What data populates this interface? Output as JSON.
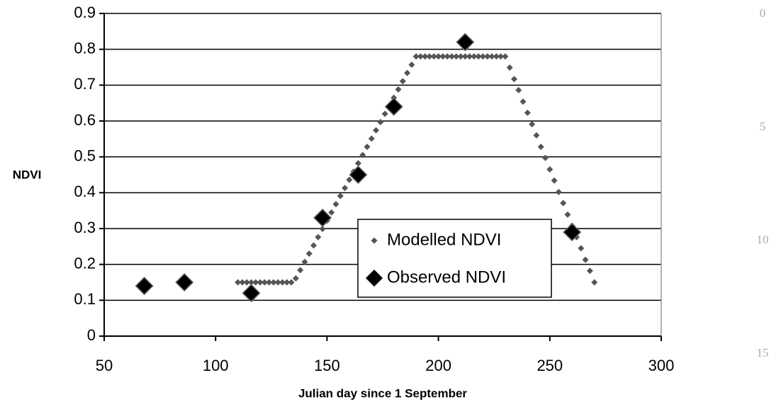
{
  "chart_data": {
    "type": "scatter",
    "xlabel": "Julian day since 1 September",
    "ylabel": "NDVI",
    "xlim": [
      50,
      300
    ],
    "xticks": [
      50,
      100,
      150,
      200,
      250,
      300
    ],
    "ylim": [
      0,
      0.9
    ],
    "yticks": [
      0,
      0.1,
      0.2,
      0.3,
      0.4,
      0.5,
      0.6,
      0.7,
      0.8,
      0.9
    ],
    "grid": true,
    "legend": "center-right",
    "series": [
      {
        "name": "Modelled NDVI",
        "color": "#555555",
        "marker": "small-diamond",
        "x": [
          110,
          112,
          114,
          116,
          118,
          120,
          122,
          124,
          126,
          128,
          130,
          132,
          134,
          136,
          138,
          140,
          142,
          144,
          146,
          148,
          150,
          152,
          154,
          156,
          158,
          160,
          162,
          164,
          166,
          168,
          170,
          172,
          174,
          176,
          178,
          180,
          182,
          184,
          186,
          188,
          190,
          192,
          194,
          196,
          198,
          200,
          202,
          204,
          206,
          208,
          210,
          212,
          214,
          216,
          218,
          220,
          222,
          224,
          226,
          228,
          230,
          232,
          234,
          236,
          238,
          240,
          242,
          244,
          246,
          248,
          250,
          252,
          254,
          256,
          258,
          260,
          262,
          264,
          266,
          268,
          270
        ],
        "values": [
          0.15,
          0.15,
          0.15,
          0.15,
          0.15,
          0.15,
          0.15,
          0.15,
          0.15,
          0.15,
          0.15,
          0.15,
          0.15,
          0.161,
          0.184,
          0.207,
          0.23,
          0.253,
          0.276,
          0.299,
          0.322,
          0.345,
          0.368,
          0.391,
          0.413,
          0.436,
          0.459,
          0.482,
          0.505,
          0.528,
          0.551,
          0.574,
          0.597,
          0.62,
          0.643,
          0.665,
          0.688,
          0.711,
          0.734,
          0.757,
          0.78,
          0.78,
          0.78,
          0.78,
          0.78,
          0.78,
          0.78,
          0.78,
          0.78,
          0.78,
          0.78,
          0.78,
          0.78,
          0.78,
          0.78,
          0.78,
          0.78,
          0.78,
          0.78,
          0.78,
          0.78,
          0.749,
          0.717,
          0.686,
          0.654,
          0.623,
          0.591,
          0.56,
          0.528,
          0.497,
          0.465,
          0.434,
          0.402,
          0.371,
          0.339,
          0.308,
          0.276,
          0.245,
          0.213,
          0.182,
          0.15
        ]
      },
      {
        "name": "Observed NDVI",
        "color": "#000000",
        "marker": "large-diamond",
        "x": [
          68,
          86,
          116,
          148,
          164,
          180,
          212,
          260
        ],
        "values": [
          0.14,
          0.15,
          0.12,
          0.33,
          0.45,
          0.64,
          0.82,
          0.29
        ]
      }
    ]
  },
  "margin_line_numbers": [
    "0",
    "5",
    "10",
    "15"
  ]
}
